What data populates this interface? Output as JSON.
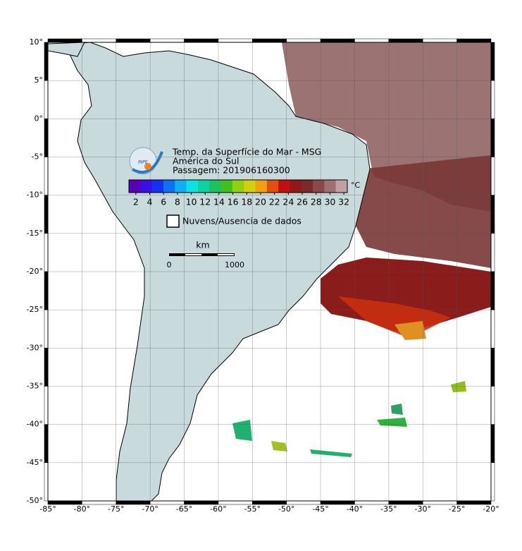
{
  "header": {
    "title": "Temp. da Superfície do Mar - MSG",
    "region": "América do Sul",
    "pass": "Passagem: 201906160300",
    "logo": "INPE"
  },
  "colorbar": {
    "unit": "°C",
    "range": [
      1,
      32.5
    ],
    "ticks": [
      2,
      4,
      6,
      8,
      10,
      12,
      14,
      16,
      18,
      20,
      22,
      24,
      26,
      28,
      30,
      32
    ],
    "colors": [
      "#5a00b4",
      "#3a10e0",
      "#1830f0",
      "#1070f0",
      "#10b0f0",
      "#10e0e0",
      "#10d0a0",
      "#20c060",
      "#40c020",
      "#90d010",
      "#d0d010",
      "#f0a010",
      "#e05010",
      "#c01010",
      "#901818",
      "#7a2a2a",
      "#8a4848",
      "#a07070",
      "#c0a0a0"
    ]
  },
  "legend": {
    "label": "Nuvens/Ausencia de dados"
  },
  "scale": {
    "unit": "km",
    "ticks": [
      0,
      1000
    ]
  },
  "map": {
    "lonlim": [
      -85,
      -20
    ],
    "latlim": [
      -50,
      10
    ],
    "xticks": [
      {
        "value": -85,
        "label": "-85°"
      },
      {
        "value": -80,
        "label": "-80°"
      },
      {
        "value": -75,
        "label": "-75°"
      },
      {
        "value": -70,
        "label": "-70°"
      },
      {
        "value": -65,
        "label": "-65°"
      },
      {
        "value": -60,
        "label": "-60°"
      },
      {
        "value": -55,
        "label": "-55°"
      },
      {
        "value": -50,
        "label": "-50°"
      },
      {
        "value": -45,
        "label": "-45°"
      },
      {
        "value": -40,
        "label": "-40°"
      },
      {
        "value": -35,
        "label": "-35°"
      },
      {
        "value": -30,
        "label": "-30°"
      },
      {
        "value": -25,
        "label": "-25°"
      },
      {
        "value": -20,
        "label": "-20°"
      }
    ],
    "yticks": [
      {
        "value": 10,
        "label": "10°"
      },
      {
        "value": 5,
        "label": "5°"
      },
      {
        "value": 0,
        "label": "0°"
      },
      {
        "value": -5,
        "label": "-5°"
      },
      {
        "value": -10,
        "label": "-10°"
      },
      {
        "value": -15,
        "label": "-15°"
      },
      {
        "value": -20,
        "label": "-20°"
      },
      {
        "value": -25,
        "label": "-25°"
      },
      {
        "value": -30,
        "label": "-30°"
      },
      {
        "value": -35,
        "label": "-35°"
      },
      {
        "value": -40,
        "label": "-40°"
      },
      {
        "value": -45,
        "label": "-45°"
      },
      {
        "value": -50,
        "label": "-50°"
      }
    ]
  }
}
